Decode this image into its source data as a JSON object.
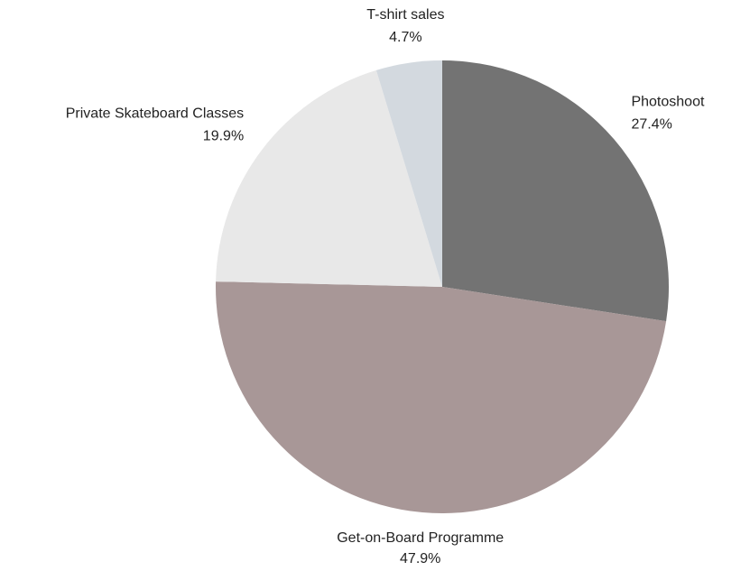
{
  "chart_data": {
    "type": "pie",
    "categories": [
      "Photoshoot",
      "Get-on-Board Programme",
      "Private Skateboard Classes",
      "T-shirt sales"
    ],
    "values": [
      27.4,
      47.9,
      19.9,
      4.7
    ],
    "value_labels": [
      "27.4%",
      "47.9%",
      "19.9%",
      "4.7%"
    ],
    "colors": [
      "#737373",
      "#a89797",
      "#e8e8e8",
      "#d3d9df"
    ]
  }
}
